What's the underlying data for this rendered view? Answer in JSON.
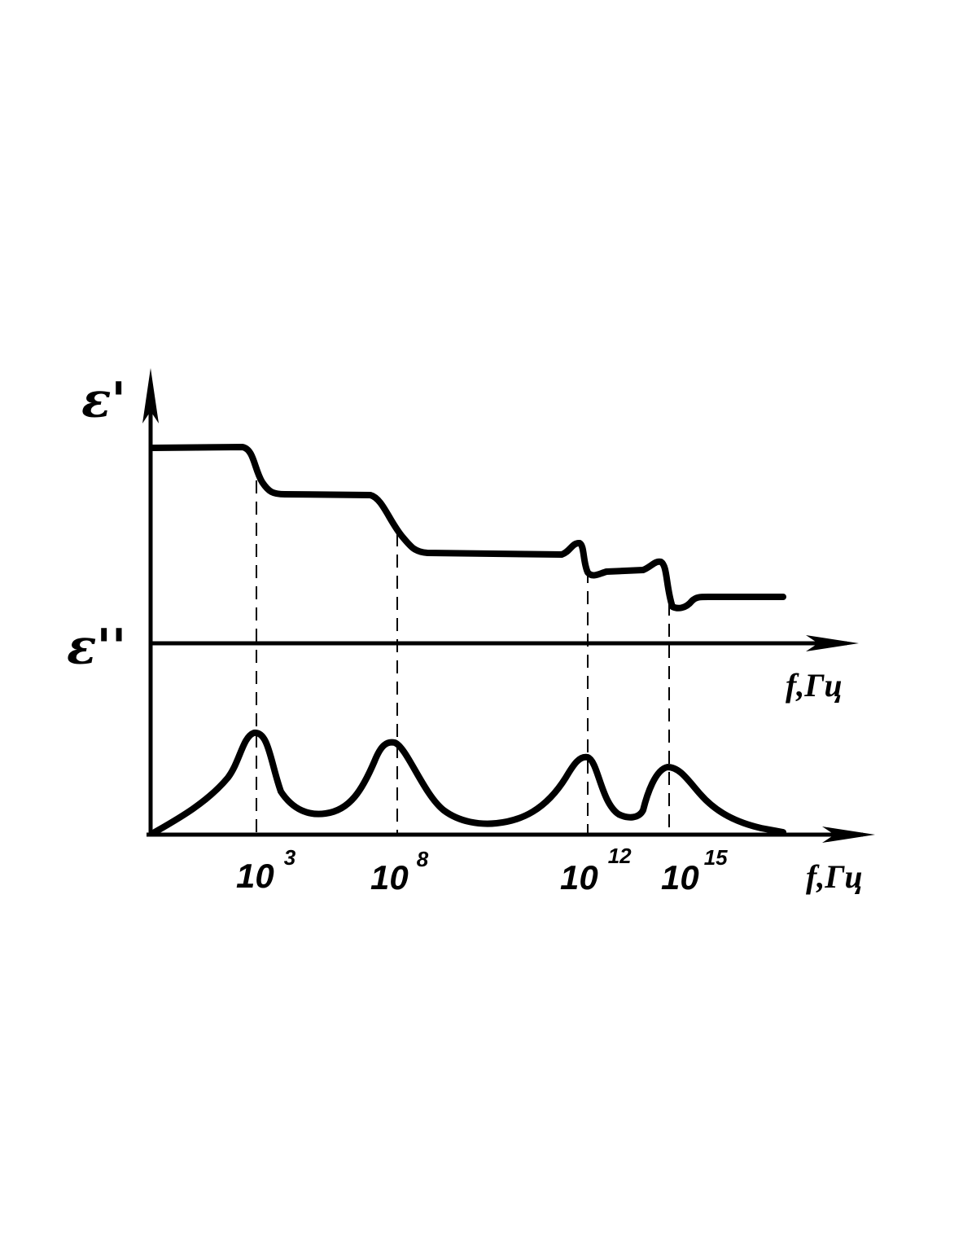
{
  "axes": {
    "upper": {
      "y_label": "ε'",
      "x_label": "f,Гц"
    },
    "lower": {
      "y_label": "ε''",
      "x_label": "f,Гц"
    }
  },
  "ticks": [
    {
      "base": "10",
      "exponent": "3"
    },
    {
      "base": "10",
      "exponent": "8"
    },
    {
      "base": "10",
      "exponent": "12"
    },
    {
      "base": "10",
      "exponent": "15"
    }
  ]
}
